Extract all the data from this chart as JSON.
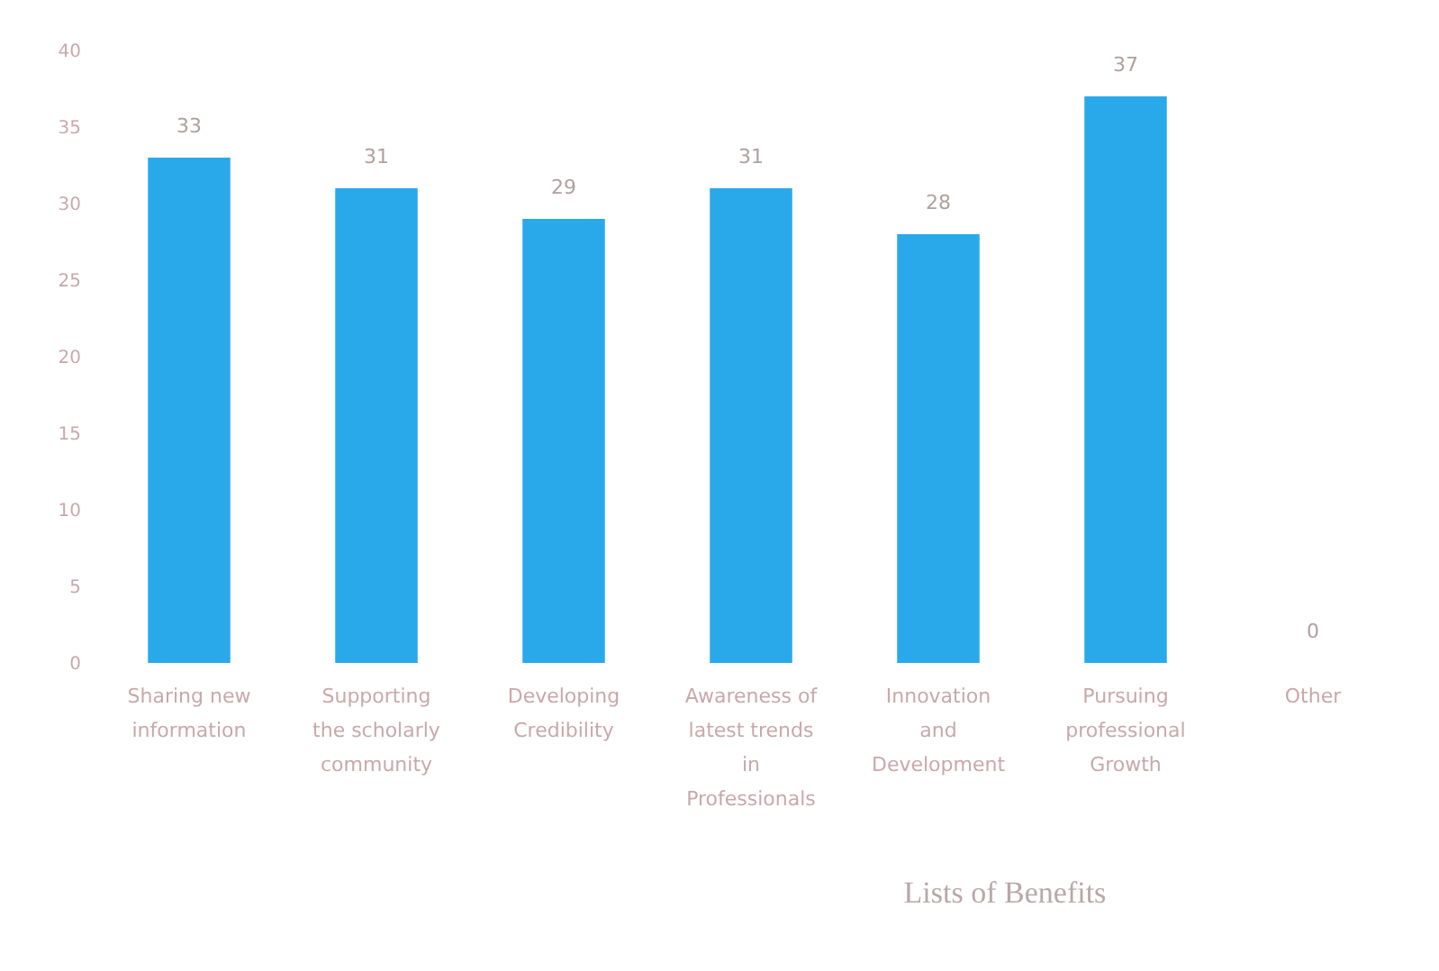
{
  "chart_data": {
    "type": "bar",
    "xlabel": "Lists of Benefits",
    "categories": [
      "Sharing new information",
      "Supporting the scholarly community",
      "Developing Credibility",
      "Awareness of latest trends in Professionals",
      "Innovation and Development",
      "Pursuing professional Growth",
      "Other"
    ],
    "values": [
      33,
      31,
      29,
      31,
      28,
      37,
      0
    ],
    "color": "#2aa9ea",
    "ylim": [
      0,
      40
    ],
    "yticks": [
      0,
      5,
      10,
      15,
      20,
      25,
      30,
      35,
      40
    ],
    "grid": false,
    "data_labels": true
  }
}
